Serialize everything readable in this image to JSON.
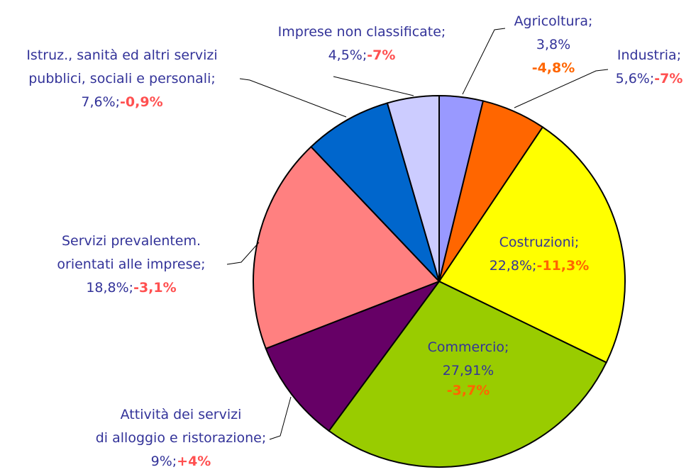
{
  "chart_data": {
    "type": "pie",
    "categories": [
      [
        "Agricoltura;"
      ],
      [
        "Industria;"
      ],
      [
        "Costruzioni;"
      ],
      [
        "Commercio;"
      ],
      [
        "Attività dei servizi",
        "di alloggio e ristorazione;"
      ],
      [
        "Servizi prevalentem.",
        "orientati alle imprese;"
      ],
      [
        "Istruz., sanità ed altri servizi",
        "pubblici, sociali e personali;"
      ],
      [
        "Imprese non classificate;"
      ]
    ],
    "values": [
      3.8,
      5.6,
      22.8,
      27.91,
      9,
      18.8,
      7.6,
      4.5
    ],
    "value_labels": [
      "3,8%",
      "5,6%;",
      "22,8%;",
      "27,91%",
      "9%;",
      "18,8%;",
      "7,6%;",
      "4,5%;"
    ],
    "changes": [
      -4.8,
      -7,
      -11.3,
      -3.7,
      4,
      -3.1,
      -0.9,
      -7
    ],
    "change_labels": [
      "-4,8%",
      "-7%",
      "-11,3%",
      "-3,7%",
      "+4%",
      "-3,1%",
      "-0,9%",
      "-7%"
    ],
    "colors": [
      "#9999ff",
      "#ff6600",
      "#ffff00",
      "#99cc00",
      "#660066",
      "#ff8080",
      "#0066cc",
      "#ccccff"
    ],
    "change_colors": [
      "#ff6600",
      "#ff5050",
      "#ff6600",
      "#ff6600",
      "#ff5050",
      "#ff5050",
      "#ff5050",
      "#ff5050"
    ]
  }
}
